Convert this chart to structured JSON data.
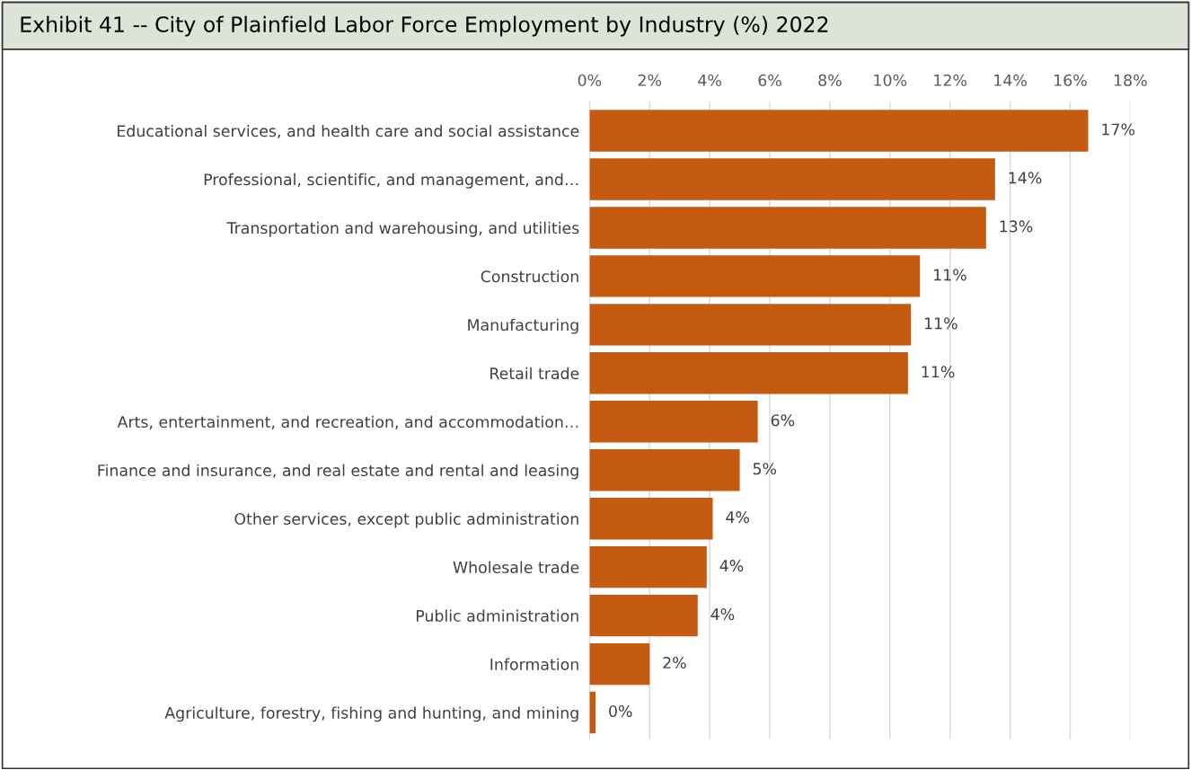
{
  "chart_data": {
    "type": "bar",
    "orientation": "horizontal",
    "title": "Exhibit 41 -- City of Plainfield Labor Force Employment by Industry (%) 2022",
    "categories": [
      "Educational services, and health care and social assistance",
      "Professional, scientific, and management, and…",
      "Transportation and warehousing, and utilities",
      "Construction",
      "Manufacturing",
      "Retail trade",
      "Arts, entertainment, and recreation, and accommodation…",
      "Finance and insurance, and real estate and rental and leasing",
      "Other services, except public administration",
      "Wholesale trade",
      "Public administration",
      "Information",
      "Agriculture, forestry, fishing and hunting, and mining"
    ],
    "values": [
      16.6,
      13.5,
      13.2,
      11.0,
      10.7,
      10.6,
      5.6,
      5.0,
      4.1,
      3.9,
      3.6,
      2.0,
      0.2
    ],
    "value_labels": [
      "17%",
      "14%",
      "13%",
      "11%",
      "11%",
      "11%",
      "6%",
      "5%",
      "4%",
      "4%",
      "4%",
      "2%",
      "0%"
    ],
    "color": "#c55a11",
    "xlim": [
      0,
      18
    ],
    "xticks": [
      {
        "value": 0,
        "label": "0%"
      },
      {
        "value": 2,
        "label": "2%"
      },
      {
        "value": 4,
        "label": "4%"
      },
      {
        "value": 6,
        "label": "6%"
      },
      {
        "value": 8,
        "label": "8%"
      },
      {
        "value": 10,
        "label": "10%"
      },
      {
        "value": 12,
        "label": "12%"
      },
      {
        "value": 14,
        "label": "14%"
      },
      {
        "value": 16,
        "label": "16%"
      },
      {
        "value": 18,
        "label": "18%"
      }
    ],
    "grid": "x"
  }
}
